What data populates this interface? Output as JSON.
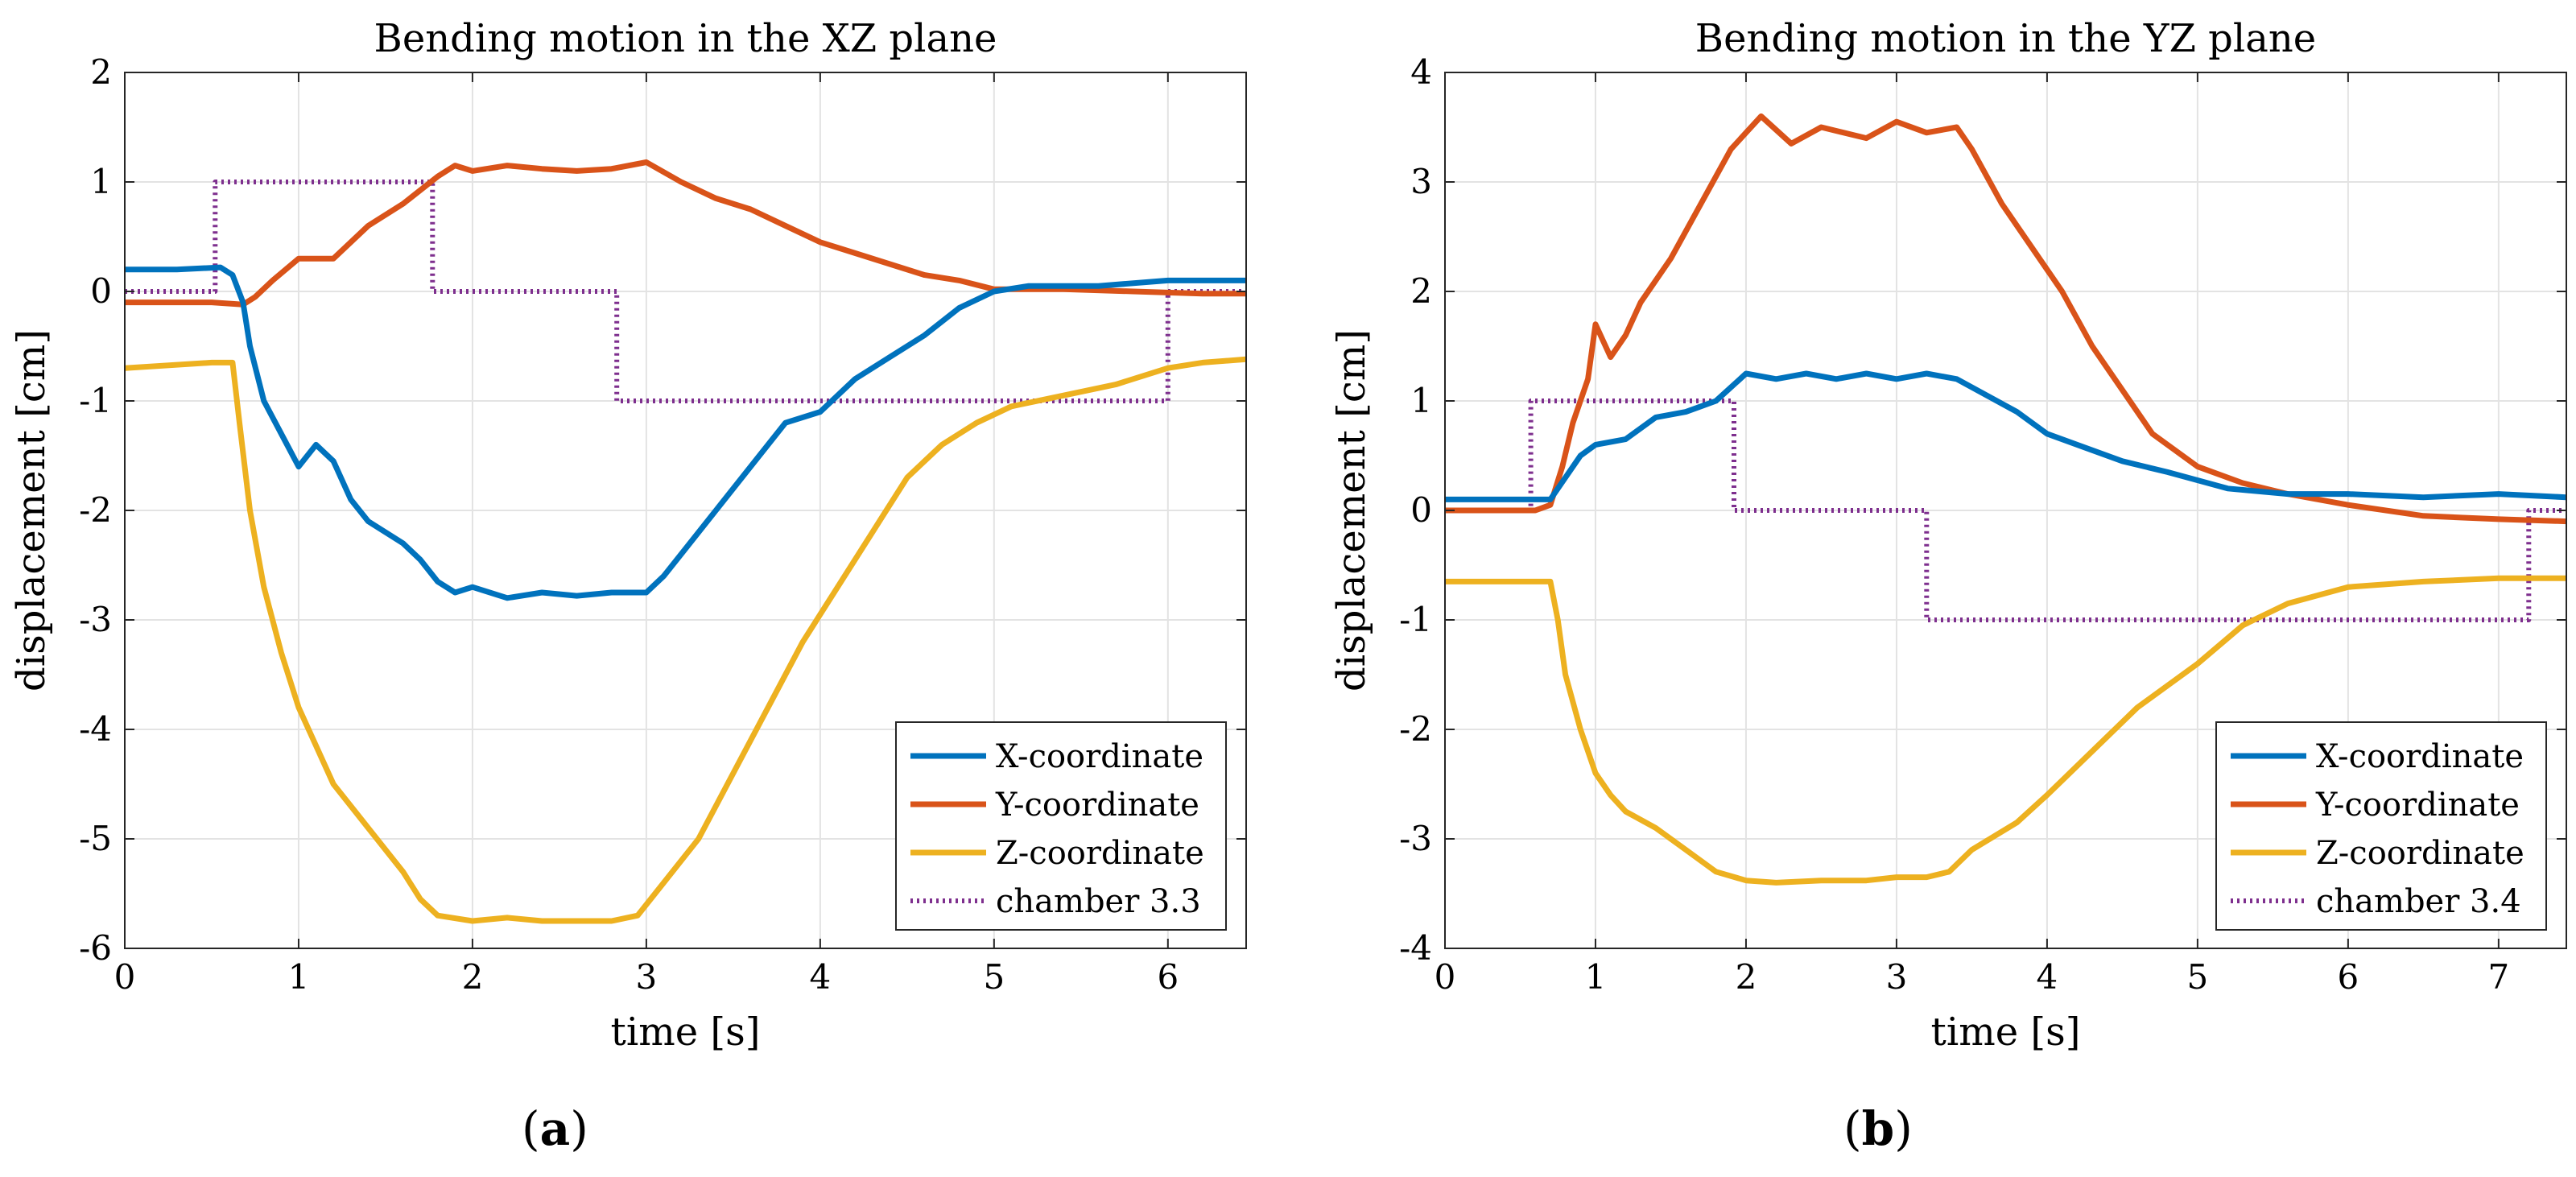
{
  "figure": {
    "panel_labels": [
      {
        "open": "(",
        "letter": "a",
        "close": ")"
      },
      {
        "open": "(",
        "letter": "b",
        "close": ")"
      }
    ]
  },
  "colors": {
    "x": "#0072BD",
    "y": "#D95319",
    "z": "#EDB120",
    "chamber": "#7E2F8E",
    "grid": "#e3e3e3",
    "axis": "#262626"
  },
  "chart_data": [
    {
      "type": "line",
      "title": "Bending motion in the XZ plane",
      "xlabel": "time [s]",
      "ylabel": "displacement [cm]",
      "xlim": [
        0,
        6.45
      ],
      "ylim": [
        -6,
        2
      ],
      "xticks": [
        0,
        1,
        2,
        3,
        4,
        5,
        6
      ],
      "yticks": [
        2,
        1,
        0,
        -1,
        -2,
        -3,
        -4,
        -5,
        -6
      ],
      "grid": true,
      "legend_position": "bottom-right",
      "series": [
        {
          "key": "x",
          "name": "X-coordinate",
          "style": "solid",
          "x": [
            0,
            0.3,
            0.55,
            0.62,
            0.68,
            0.72,
            0.8,
            0.9,
            1.0,
            1.1,
            1.2,
            1.3,
            1.4,
            1.5,
            1.6,
            1.7,
            1.8,
            1.9,
            2.0,
            2.2,
            2.4,
            2.6,
            2.8,
            3.0,
            3.1,
            3.2,
            3.4,
            3.6,
            3.8,
            4.0,
            4.2,
            4.4,
            4.6,
            4.8,
            5.0,
            5.2,
            5.6,
            6.0,
            6.45
          ],
          "values": [
            0.2,
            0.2,
            0.22,
            0.15,
            -0.1,
            -0.5,
            -1.0,
            -1.3,
            -1.6,
            -1.4,
            -1.55,
            -1.9,
            -2.1,
            -2.2,
            -2.3,
            -2.45,
            -2.65,
            -2.75,
            -2.7,
            -2.8,
            -2.75,
            -2.78,
            -2.75,
            -2.75,
            -2.6,
            -2.4,
            -2.0,
            -1.6,
            -1.2,
            -1.1,
            -0.8,
            -0.6,
            -0.4,
            -0.15,
            0.0,
            0.05,
            0.05,
            0.1,
            0.1
          ]
        },
        {
          "key": "y",
          "name": "Y-coordinate",
          "style": "solid",
          "x": [
            0,
            0.5,
            0.68,
            0.75,
            0.85,
            1.0,
            1.2,
            1.4,
            1.6,
            1.8,
            1.9,
            2.0,
            2.2,
            2.4,
            2.6,
            2.8,
            3.0,
            3.2,
            3.4,
            3.6,
            3.8,
            4.0,
            4.2,
            4.4,
            4.6,
            4.8,
            5.0,
            5.4,
            5.8,
            6.2,
            6.45
          ],
          "values": [
            -0.1,
            -0.1,
            -0.12,
            -0.05,
            0.1,
            0.3,
            0.3,
            0.6,
            0.8,
            1.05,
            1.15,
            1.1,
            1.15,
            1.12,
            1.1,
            1.12,
            1.18,
            1.0,
            0.85,
            0.75,
            0.6,
            0.45,
            0.35,
            0.25,
            0.15,
            0.1,
            0.02,
            0.02,
            0.0,
            -0.02,
            -0.02
          ]
        },
        {
          "key": "z",
          "name": "Z-coordinate",
          "style": "solid",
          "x": [
            0,
            0.5,
            0.62,
            0.66,
            0.72,
            0.8,
            0.9,
            1.0,
            1.2,
            1.4,
            1.6,
            1.7,
            1.8,
            2.0,
            2.2,
            2.4,
            2.6,
            2.8,
            2.95,
            3.1,
            3.3,
            3.5,
            3.7,
            3.9,
            4.1,
            4.3,
            4.5,
            4.7,
            4.9,
            5.1,
            5.4,
            5.7,
            6.0,
            6.2,
            6.45
          ],
          "values": [
            -0.7,
            -0.65,
            -0.65,
            -1.2,
            -2.0,
            -2.7,
            -3.3,
            -3.8,
            -4.5,
            -4.9,
            -5.3,
            -5.55,
            -5.7,
            -5.75,
            -5.72,
            -5.75,
            -5.75,
            -5.75,
            -5.7,
            -5.4,
            -5.0,
            -4.4,
            -3.8,
            -3.2,
            -2.7,
            -2.2,
            -1.7,
            -1.4,
            -1.2,
            -1.05,
            -0.95,
            -0.85,
            -0.7,
            -0.65,
            -0.62
          ]
        },
        {
          "key": "chamber",
          "name": "chamber 3.3",
          "style": "dotted",
          "x": [
            0,
            0.52,
            0.52,
            1.77,
            1.77,
            2.83,
            2.83,
            6.0,
            6.0,
            6.45
          ],
          "values": [
            0,
            0,
            1,
            1,
            0,
            0,
            -1,
            -1,
            0,
            0
          ]
        }
      ]
    },
    {
      "type": "line",
      "title": "Bending motion in the YZ plane",
      "xlabel": "time [s]",
      "ylabel": "displacement [cm]",
      "xlim": [
        0,
        7.45
      ],
      "ylim": [
        -4,
        4
      ],
      "xticks": [
        0,
        1,
        2,
        3,
        4,
        5,
        6,
        7
      ],
      "yticks": [
        4,
        3,
        2,
        1,
        0,
        -1,
        -2,
        -3,
        -4
      ],
      "grid": true,
      "legend_position": "bottom-right",
      "series": [
        {
          "key": "x",
          "name": "X-coordinate",
          "style": "solid",
          "x": [
            0,
            0.4,
            0.7,
            0.8,
            0.9,
            1.0,
            1.2,
            1.4,
            1.6,
            1.8,
            2.0,
            2.2,
            2.4,
            2.6,
            2.8,
            3.0,
            3.2,
            3.4,
            3.6,
            3.8,
            4.0,
            4.2,
            4.5,
            4.8,
            5.2,
            5.6,
            6.0,
            6.5,
            7.0,
            7.45
          ],
          "values": [
            0.1,
            0.1,
            0.1,
            0.3,
            0.5,
            0.6,
            0.65,
            0.85,
            0.9,
            1.0,
            1.25,
            1.2,
            1.25,
            1.2,
            1.25,
            1.2,
            1.25,
            1.2,
            1.05,
            0.9,
            0.7,
            0.6,
            0.45,
            0.35,
            0.2,
            0.15,
            0.15,
            0.12,
            0.15,
            0.12
          ]
        },
        {
          "key": "y",
          "name": "Y-coordinate",
          "style": "solid",
          "x": [
            0,
            0.6,
            0.7,
            0.78,
            0.85,
            0.95,
            1.0,
            1.1,
            1.2,
            1.3,
            1.5,
            1.7,
            1.9,
            2.0,
            2.1,
            2.3,
            2.5,
            2.8,
            3.0,
            3.2,
            3.4,
            3.5,
            3.7,
            3.9,
            4.1,
            4.3,
            4.5,
            4.7,
            5.0,
            5.3,
            5.6,
            6.0,
            6.5,
            7.0,
            7.45
          ],
          "values": [
            0,
            0,
            0.05,
            0.4,
            0.8,
            1.2,
            1.7,
            1.4,
            1.6,
            1.9,
            2.3,
            2.8,
            3.3,
            3.45,
            3.6,
            3.35,
            3.5,
            3.4,
            3.55,
            3.45,
            3.5,
            3.3,
            2.8,
            2.4,
            2.0,
            1.5,
            1.1,
            0.7,
            0.4,
            0.25,
            0.15,
            0.05,
            -0.05,
            -0.08,
            -0.1
          ]
        },
        {
          "key": "z",
          "name": "Z-coordinate",
          "style": "solid",
          "x": [
            0,
            0.5,
            0.7,
            0.75,
            0.8,
            0.9,
            1.0,
            1.1,
            1.2,
            1.4,
            1.6,
            1.8,
            2.0,
            2.2,
            2.5,
            2.8,
            3.0,
            3.2,
            3.35,
            3.5,
            3.8,
            4.0,
            4.3,
            4.6,
            5.0,
            5.3,
            5.6,
            6.0,
            6.5,
            7.0,
            7.45
          ],
          "values": [
            -0.65,
            -0.65,
            -0.65,
            -1.0,
            -1.5,
            -2.0,
            -2.4,
            -2.6,
            -2.75,
            -2.9,
            -3.1,
            -3.3,
            -3.38,
            -3.4,
            -3.38,
            -3.38,
            -3.35,
            -3.35,
            -3.3,
            -3.1,
            -2.85,
            -2.6,
            -2.2,
            -1.8,
            -1.4,
            -1.05,
            -0.85,
            -0.7,
            -0.65,
            -0.62,
            -0.62
          ]
        },
        {
          "key": "chamber",
          "name": "chamber 3.4",
          "style": "dotted",
          "x": [
            0,
            0.57,
            0.57,
            1.92,
            1.92,
            3.2,
            3.2,
            7.2,
            7.2,
            7.45
          ],
          "values": [
            0,
            0,
            1,
            1,
            0,
            0,
            -1,
            -1,
            0,
            0
          ]
        }
      ]
    }
  ]
}
